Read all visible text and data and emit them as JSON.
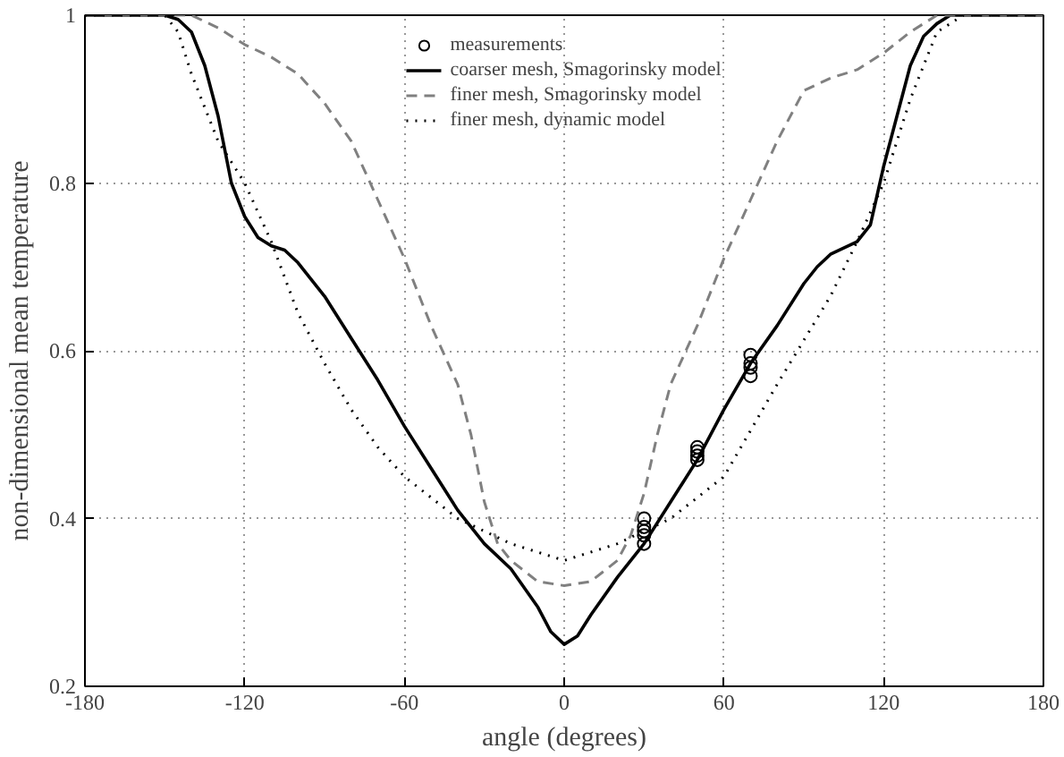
{
  "chart_data": {
    "type": "line",
    "xlabel": "angle (degrees)",
    "ylabel": "non-dimensional mean temperature",
    "xlim": [
      -180,
      180
    ],
    "ylim": [
      0.2,
      1
    ],
    "xticks": [
      -180,
      -120,
      -60,
      0,
      60,
      120,
      180
    ],
    "yticks": [
      0.2,
      0.4,
      0.6,
      0.8,
      1
    ],
    "grid": true,
    "legend": "top",
    "series": [
      {
        "name": "measurements",
        "type": "scatter",
        "marker": "circle",
        "color": "#000000",
        "x": [
          30,
          30,
          30,
          30,
          30,
          50,
          50,
          50,
          50,
          70,
          70,
          70,
          70
        ],
        "values": [
          0.37,
          0.38,
          0.385,
          0.39,
          0.4,
          0.47,
          0.475,
          0.48,
          0.485,
          0.57,
          0.58,
          0.585,
          0.595
        ]
      },
      {
        "name": "coarser mesh, Smagorinsky model",
        "line_style": "solid",
        "color": "#000000",
        "x": [
          -180,
          -150,
          -145,
          -140,
          -135,
          -130,
          -125,
          -120,
          -115,
          -110,
          -105,
          -100,
          -90,
          -80,
          -70,
          -60,
          -50,
          -40,
          -30,
          -20,
          -10,
          -5,
          0,
          5,
          10,
          20,
          30,
          40,
          50,
          60,
          70,
          80,
          90,
          95,
          100,
          110,
          115,
          120,
          125,
          130,
          135,
          140,
          145,
          180
        ],
        "values": [
          1,
          1,
          0.995,
          0.98,
          0.94,
          0.88,
          0.8,
          0.76,
          0.735,
          0.725,
          0.72,
          0.705,
          0.665,
          0.615,
          0.565,
          0.51,
          0.46,
          0.41,
          0.37,
          0.34,
          0.295,
          0.265,
          0.25,
          0.26,
          0.285,
          0.33,
          0.37,
          0.42,
          0.47,
          0.53,
          0.585,
          0.63,
          0.68,
          0.7,
          0.715,
          0.73,
          0.75,
          0.82,
          0.88,
          0.94,
          0.975,
          0.99,
          1,
          1
        ]
      },
      {
        "name": "finer mesh, Smagorinsky model",
        "line_style": "dashed",
        "color": "#808080",
        "x": [
          -180,
          -145,
          -140,
          -130,
          -120,
          -110,
          -100,
          -90,
          -80,
          -70,
          -60,
          -50,
          -40,
          -35,
          -30,
          -25,
          -20,
          -10,
          0,
          10,
          20,
          25,
          30,
          35,
          40,
          50,
          60,
          70,
          80,
          90,
          100,
          110,
          120,
          130,
          140,
          180
        ],
        "values": [
          1,
          1,
          1,
          0.985,
          0.965,
          0.95,
          0.93,
          0.895,
          0.85,
          0.78,
          0.71,
          0.63,
          0.56,
          0.5,
          0.42,
          0.37,
          0.35,
          0.325,
          0.32,
          0.325,
          0.35,
          0.38,
          0.43,
          0.5,
          0.56,
          0.63,
          0.71,
          0.78,
          0.85,
          0.91,
          0.925,
          0.935,
          0.955,
          0.98,
          1,
          1
        ]
      },
      {
        "name": "finer mesh, dynamic model",
        "line_style": "dotted",
        "color": "#000000",
        "x": [
          -180,
          -150,
          -145,
          -140,
          -130,
          -120,
          -110,
          -100,
          -90,
          -80,
          -70,
          -60,
          -40,
          -20,
          0,
          20,
          40,
          60,
          80,
          100,
          110,
          120,
          130,
          140,
          150,
          180
        ],
        "values": [
          1,
          1,
          0.98,
          0.93,
          0.85,
          0.8,
          0.73,
          0.645,
          0.585,
          0.53,
          0.485,
          0.45,
          0.4,
          0.37,
          0.35,
          0.37,
          0.4,
          0.45,
          0.56,
          0.665,
          0.73,
          0.8,
          0.9,
          0.98,
          1,
          1
        ]
      }
    ]
  }
}
